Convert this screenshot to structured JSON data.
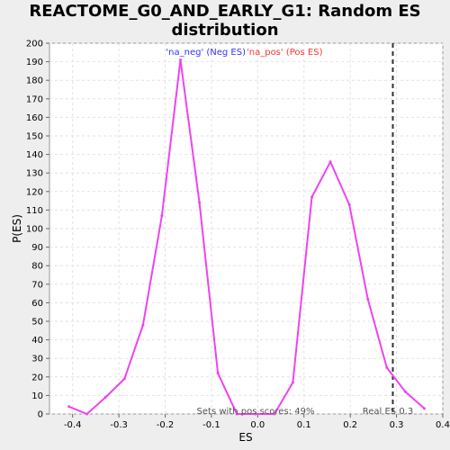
{
  "chart_data": {
    "type": "line",
    "title_line1": "REACTOME_G0_AND_EARLY_G1: Random ES",
    "title_line2": "distribution",
    "xlabel": "ES",
    "ylabel": "P(ES)",
    "xlim": [
      -0.45,
      0.4
    ],
    "ylim": [
      0,
      200
    ],
    "x_ticks": [
      -0.4,
      -0.3,
      -0.2,
      -0.1,
      0.0,
      0.1,
      0.2,
      0.3,
      0.4
    ],
    "x_tick_labels": [
      "-0.4",
      "-0.3",
      "-0.2",
      "-0.1",
      "0.0",
      "0.1",
      "0.2",
      "0.3",
      "0.4"
    ],
    "y_ticks": [
      0,
      10,
      20,
      30,
      40,
      50,
      60,
      70,
      80,
      90,
      100,
      110,
      120,
      130,
      140,
      150,
      160,
      170,
      180,
      190,
      200
    ],
    "grid": true,
    "legend": {
      "neg": "'na_neg' (Neg ES)",
      "pos": "'na_pos' (Pos ES)",
      "placement": "top-center"
    },
    "series": [
      {
        "color": "#ee44ee",
        "x": [
          -0.408,
          -0.369,
          -0.329,
          -0.288,
          -0.248,
          -0.207,
          -0.167,
          -0.126,
          -0.086,
          -0.045,
          -0.005,
          0.036,
          0.076,
          0.117,
          0.157,
          0.198,
          0.238,
          0.279,
          0.319,
          0.36
        ],
        "y": [
          4,
          0,
          9,
          19,
          48,
          107,
          191,
          114,
          22,
          0,
          0,
          0,
          17,
          117,
          136,
          113,
          62,
          25,
          12,
          3
        ]
      }
    ],
    "real_es": {
      "value": 0.292,
      "label": "Real ES 0.3",
      "style": "dashed",
      "color": "#333333"
    },
    "annotation": "Sets with pos scores: 49%"
  }
}
